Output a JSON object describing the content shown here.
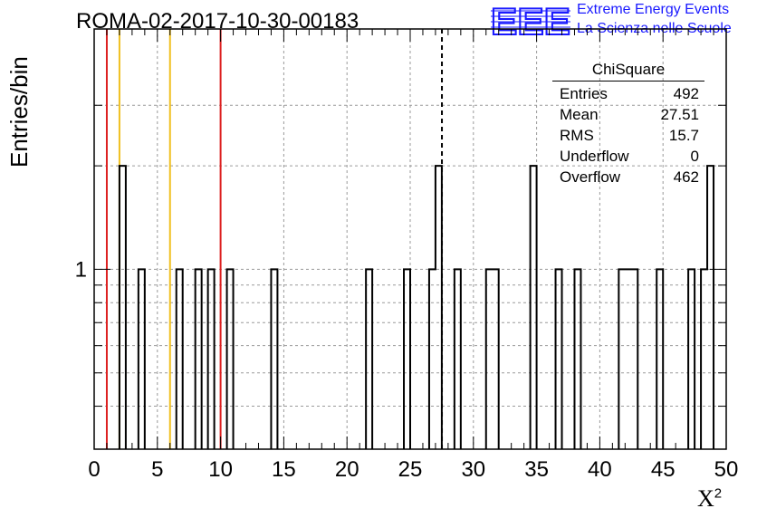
{
  "chart_data": {
    "type": "bar",
    "title": "ROMA-02-2017-10-30-00183",
    "xlabel": "X",
    "xlabel_superscript": "2",
    "ylabel": "Entries/bin",
    "xlim": [
      0,
      50
    ],
    "ylim": [
      0.3,
      5
    ],
    "y_scale": "log",
    "x_ticks": [
      "0",
      "5",
      "10",
      "15",
      "20",
      "25",
      "30",
      "35",
      "40",
      "45",
      "50"
    ],
    "y_tick_label": "1",
    "grid": true,
    "bin_width": 0.5,
    "bins": [
      {
        "x": 2.0,
        "value": 2
      },
      {
        "x": 3.5,
        "value": 1
      },
      {
        "x": 6.5,
        "value": 1
      },
      {
        "x": 8.0,
        "value": 1
      },
      {
        "x": 9.0,
        "value": 1
      },
      {
        "x": 10.5,
        "value": 1
      },
      {
        "x": 14.0,
        "value": 1
      },
      {
        "x": 21.5,
        "value": 1
      },
      {
        "x": 24.5,
        "value": 1
      },
      {
        "x": 26.5,
        "value": 1
      },
      {
        "x": 27.0,
        "value": 2
      },
      {
        "x": 28.5,
        "value": 1
      },
      {
        "x": 31.0,
        "value": 1
      },
      {
        "x": 31.5,
        "value": 1
      },
      {
        "x": 34.5,
        "value": 2
      },
      {
        "x": 36.5,
        "value": 1
      },
      {
        "x": 38.0,
        "value": 1
      },
      {
        "x": 41.5,
        "value": 1
      },
      {
        "x": 42.0,
        "value": 1
      },
      {
        "x": 42.5,
        "value": 1
      },
      {
        "x": 44.5,
        "value": 1
      },
      {
        "x": 47.0,
        "value": 1
      },
      {
        "x": 48.0,
        "value": 1
      },
      {
        "x": 48.5,
        "value": 2
      }
    ],
    "reference_lines": [
      {
        "x": 1,
        "color": "#dd2020",
        "style": "solid"
      },
      {
        "x": 2,
        "color": "#f0c020",
        "style": "solid"
      },
      {
        "x": 6,
        "color": "#f0c020",
        "style": "solid"
      },
      {
        "x": 10,
        "color": "#dd2020",
        "style": "solid"
      },
      {
        "x": 27.51,
        "color": "#000000",
        "style": "dashed"
      }
    ],
    "stats": {
      "name": "ChiSquare",
      "rows": [
        {
          "label": "Entries",
          "value": "492"
        },
        {
          "label": "Mean",
          "value": "27.51"
        },
        {
          "label": "RMS",
          "value": "15.7"
        },
        {
          "label": "Underflow",
          "value": "0"
        },
        {
          "label": "Overflow",
          "value": "462"
        }
      ]
    }
  },
  "logo": {
    "text": "EEE",
    "line1": "Extreme Energy Events",
    "line2": "La Scienza nelle Scuole",
    "color": "#1a1aff"
  }
}
